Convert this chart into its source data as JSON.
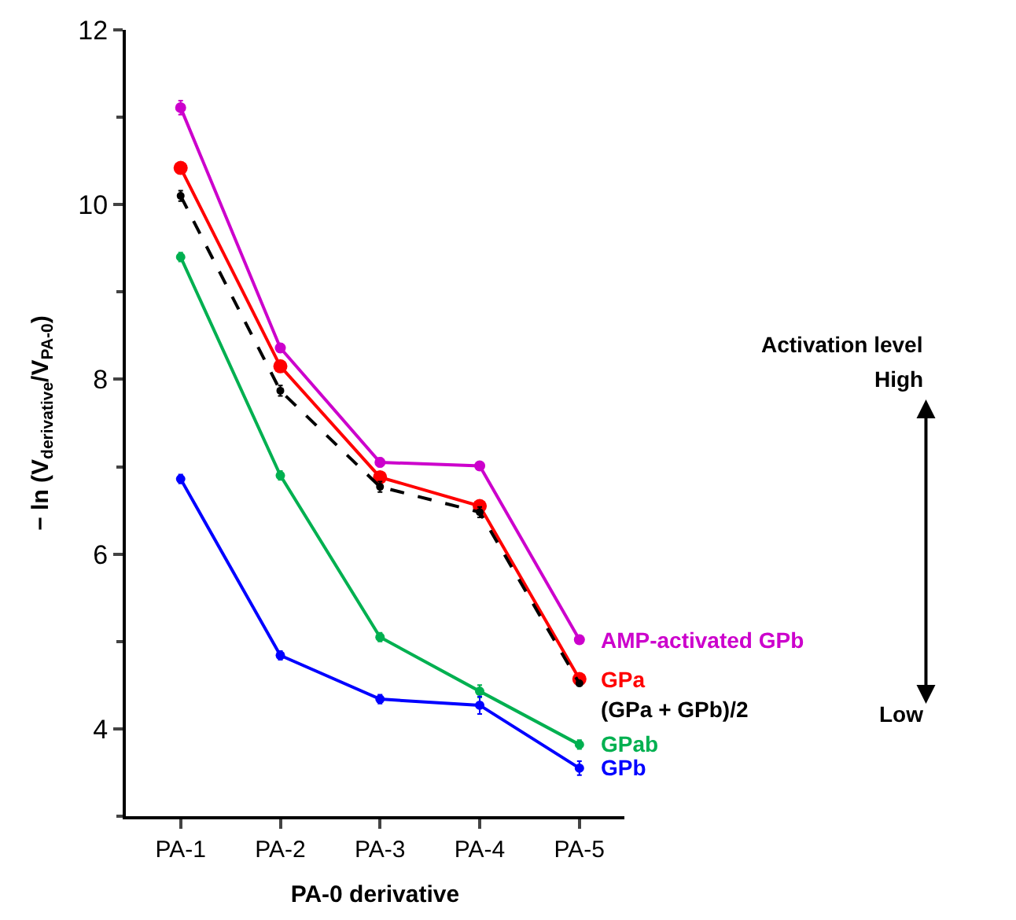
{
  "chart_data": {
    "type": "line",
    "xlabel": "PA-0 derivative",
    "ylabel": "− ln (V$_{derivative}$/V$_{PA-0}$)",
    "categories": [
      "PA-1",
      "PA-2",
      "PA-3",
      "PA-4",
      "PA-5"
    ],
    "ylim": [
      3,
      12
    ],
    "yticks": [
      4,
      6,
      8,
      10,
      12
    ],
    "legend": false,
    "marker": "circle",
    "series": [
      {
        "name": "AMP-activated GPb",
        "color": "#cc00cc",
        "values": [
          11.11,
          8.36,
          7.05,
          7.01,
          5.02
        ],
        "errors": [
          0.08,
          0.05,
          0.05,
          0.05,
          null
        ]
      },
      {
        "name": "GPa",
        "color": "#ff0000",
        "values": [
          10.42,
          8.15,
          6.88,
          6.55,
          4.57
        ],
        "errors": [
          0.06,
          0.05,
          0.05,
          0.05,
          null
        ]
      },
      {
        "name": "(GPa + GPb)/2",
        "color": "#000000",
        "line_style": "dashed",
        "values": [
          10.1,
          7.87,
          6.77,
          6.48,
          4.52
        ],
        "errors": [
          0.06,
          0.06,
          0.06,
          0.06,
          null
        ]
      },
      {
        "name": "GPab",
        "color": "#00b050",
        "values": [
          9.4,
          6.9,
          5.05,
          4.43,
          3.82
        ],
        "errors": [
          0.05,
          0.05,
          0.05,
          0.07,
          0.05
        ]
      },
      {
        "name": "GPb",
        "color": "#0000ff",
        "values": [
          6.86,
          4.84,
          4.34,
          4.27,
          3.55
        ],
        "errors": [
          0.05,
          0.05,
          0.05,
          0.1,
          0.08
        ]
      }
    ],
    "annotations": [
      "Activation level",
      "High",
      "Low"
    ]
  }
}
